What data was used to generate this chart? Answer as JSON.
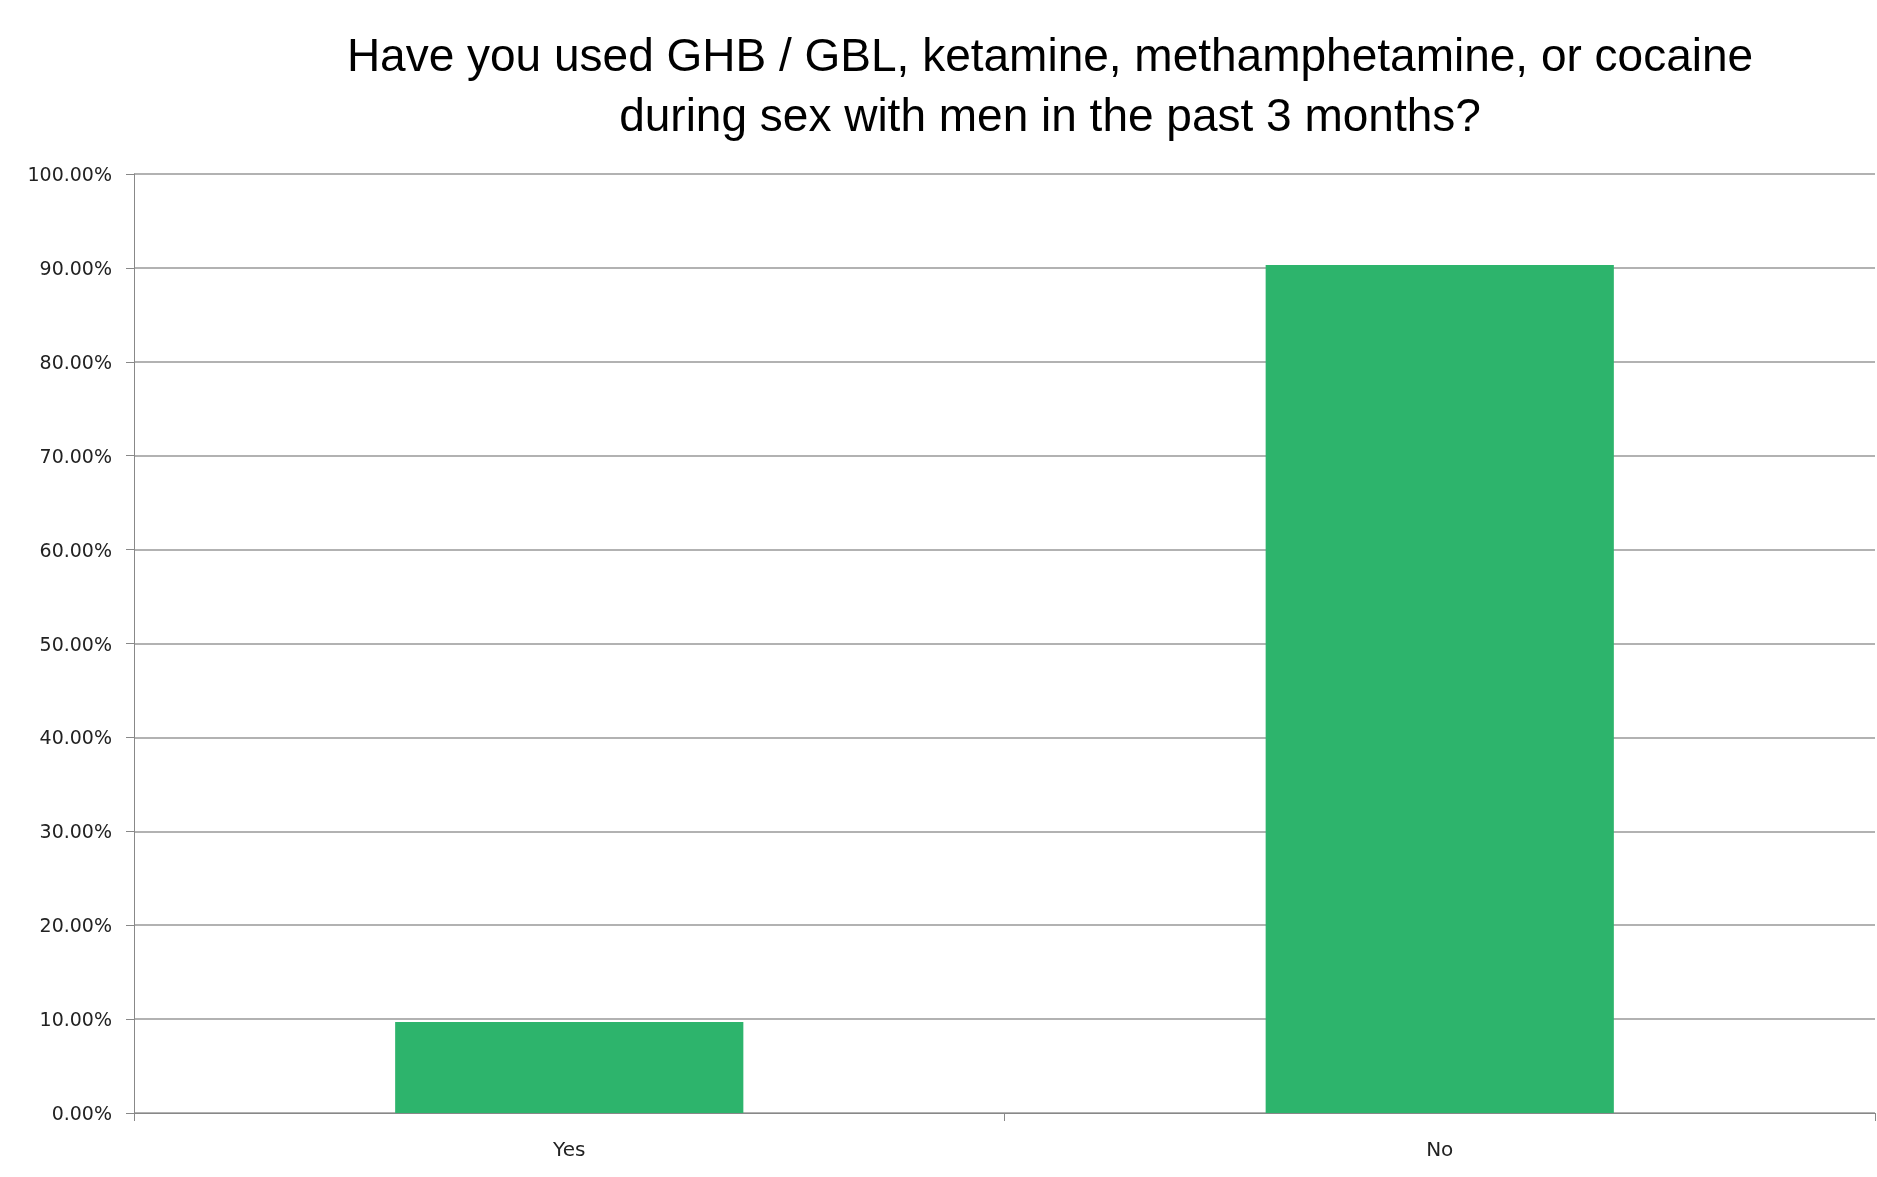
{
  "chart_data": {
    "type": "bar",
    "title": "Have you used GHB / GBL, ketamine, methamphetamine, or cocaine\nduring sex with men in the past 3 months?",
    "categories": [
      "Yes",
      "No"
    ],
    "values": [
      9.7,
      90.3
    ],
    "color": "#2db46c",
    "ylim": [
      0,
      100
    ],
    "yticks": [
      {
        "value": 0,
        "label": "0.00%"
      },
      {
        "value": 10,
        "label": "10.00%"
      },
      {
        "value": 20,
        "label": "20.00%"
      },
      {
        "value": 30,
        "label": "30.00%"
      },
      {
        "value": 40,
        "label": "40.00%"
      },
      {
        "value": 50,
        "label": "50.00%"
      },
      {
        "value": 60,
        "label": "60.00%"
      },
      {
        "value": 70,
        "label": "70.00%"
      },
      {
        "value": 80,
        "label": "80.00%"
      },
      {
        "value": 90,
        "label": "90.00%"
      },
      {
        "value": 100,
        "label": "100.00%"
      }
    ],
    "grid": "y"
  }
}
